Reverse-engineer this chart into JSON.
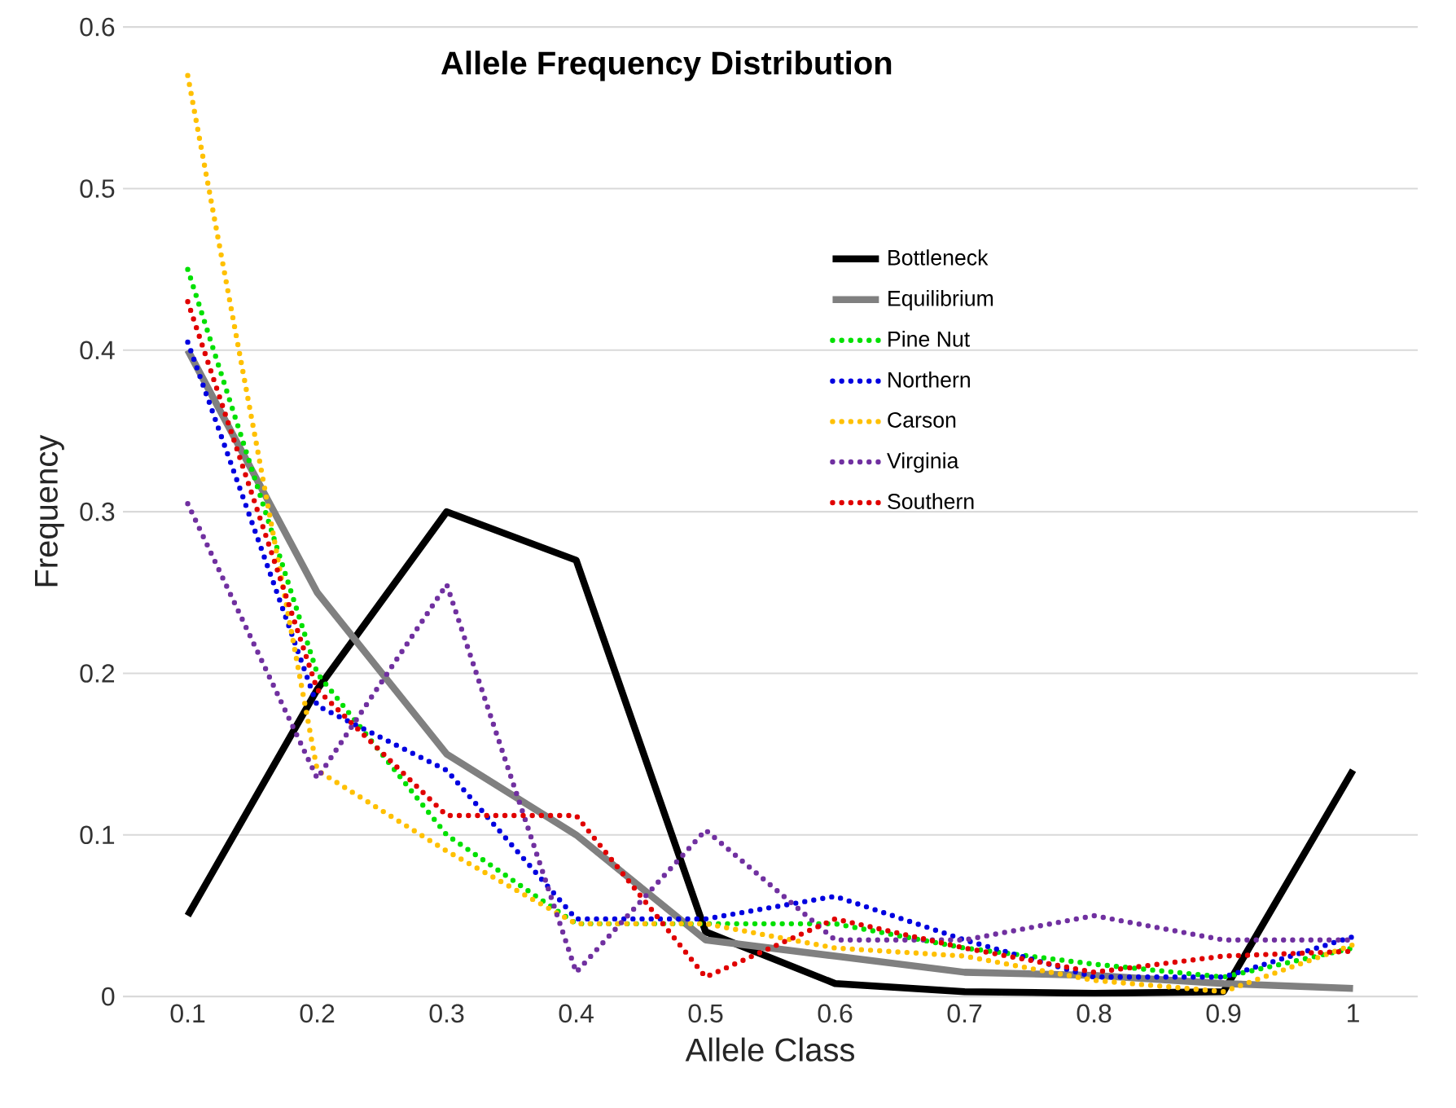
{
  "chart_data": {
    "type": "line",
    "title": "Allele Frequency Distribution",
    "xlabel": "Allele Class",
    "ylabel": "Frequency",
    "categories": [
      "0.1",
      "0.2",
      "0.3",
      "0.4",
      "0.5",
      "0.6",
      "0.7",
      "0.8",
      "0.9",
      "1"
    ],
    "ylim": [
      0,
      0.6
    ],
    "yticks": [
      0,
      0.1,
      0.2,
      0.3,
      0.4,
      0.5,
      0.6
    ],
    "grid": "y",
    "legend": "top right",
    "series": [
      {
        "name": "Bottleneck",
        "color": "#000000",
        "line_style": "solid",
        "values": [
          0.05,
          0.19,
          0.3,
          0.27,
          0.04,
          0.008,
          0.003,
          0.002,
          0.003,
          0.14
        ]
      },
      {
        "name": "Equilibrium",
        "color": "#808080",
        "line_style": "solid",
        "values": [
          0.4,
          0.25,
          0.15,
          0.1,
          0.035,
          0.025,
          0.015,
          0.013,
          0.008,
          0.005
        ]
      },
      {
        "name": "Pine Nut",
        "color": "#00e000",
        "line_style": "dotted",
        "values": [
          0.45,
          0.2,
          0.1,
          0.045,
          0.045,
          0.045,
          0.03,
          0.02,
          0.012,
          0.03
        ]
      },
      {
        "name": "Northern",
        "color": "#0000e0",
        "line_style": "dotted",
        "values": [
          0.405,
          0.18,
          0.14,
          0.048,
          0.048,
          0.062,
          0.035,
          0.012,
          0.012,
          0.037
        ]
      },
      {
        "name": "Carson",
        "color": "#ffc000",
        "line_style": "dotted",
        "values": [
          0.57,
          0.14,
          0.09,
          0.045,
          0.045,
          0.03,
          0.025,
          0.01,
          0.003,
          0.032
        ]
      },
      {
        "name": "Virginia",
        "color": "#7030a0",
        "line_style": "dotted",
        "values": [
          0.305,
          0.135,
          0.255,
          0.015,
          0.103,
          0.035,
          0.035,
          0.05,
          0.035,
          0.035
        ]
      },
      {
        "name": "Southern",
        "color": "#e00000",
        "line_style": "dotted",
        "values": [
          0.43,
          0.19,
          0.112,
          0.112,
          0.012,
          0.048,
          0.03,
          0.015,
          0.025,
          0.028
        ]
      }
    ]
  }
}
